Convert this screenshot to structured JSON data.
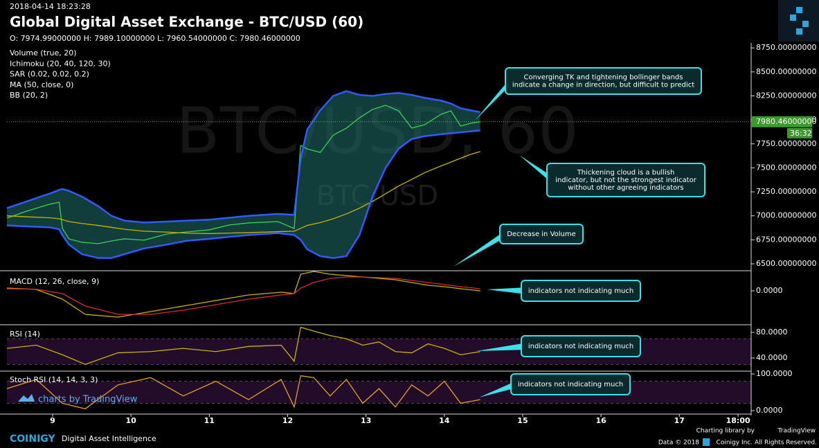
{
  "header": {
    "datetime": "2018-04-14 18:23:28",
    "title": "Global Digital Asset Exchange - BTC/USD (60)",
    "ohlc": "O: 7974.99000000 H: 7989.10000000 L: 7960.54000000 C: 7980.46000000"
  },
  "chart_data": [
    {
      "type": "line",
      "watermark": "BTC/USD, 60",
      "watermark_sub": "BTC/USD",
      "legend": [
        "Volume (true, 20)",
        "Ichimoku (20, 40, 120, 30)",
        "SAR (0.02, 0.02, 0.2)",
        "MA (50, close, 0)",
        "BB (20, 2)"
      ],
      "x": [
        -14,
        -8,
        -1,
        2,
        3,
        5,
        9,
        14,
        18,
        22,
        28,
        35,
        41,
        48,
        54,
        60,
        69,
        74,
        76,
        78,
        82,
        86,
        90,
        94,
        98,
        102,
        106,
        110,
        114,
        119,
        122,
        125,
        128,
        131
      ],
      "xlim": [
        -14,
        214
      ],
      "xticks": [
        {
          "value": 0,
          "label": "9"
        },
        {
          "value": 24,
          "label": "10"
        },
        {
          "value": 48,
          "label": "11"
        },
        {
          "value": 72,
          "label": "12"
        },
        {
          "value": 96,
          "label": "13"
        },
        {
          "value": 120,
          "label": "14"
        },
        {
          "value": 144,
          "label": "15"
        },
        {
          "value": 168,
          "label": "16"
        },
        {
          "value": 192,
          "label": "17"
        },
        {
          "value": 210,
          "label": "18:00"
        }
      ],
      "ylim": [
        6435,
        8780
      ],
      "yticks": [
        {
          "value": 6500,
          "label": "6500.00000000"
        },
        {
          "value": 6750,
          "label": "6750.00000000"
        },
        {
          "value": 7000,
          "label": "7000.00000000"
        },
        {
          "value": 7250,
          "label": "7250.00000000"
        },
        {
          "value": 7500,
          "label": "7500.00000000"
        },
        {
          "value": 7750,
          "label": "7750.00000000"
        },
        {
          "value": 8000,
          "label": "8000.00000000"
        },
        {
          "value": 8250,
          "label": "8250.00000000"
        },
        {
          "value": 8500,
          "label": "8500.00000000"
        },
        {
          "value": 8750,
          "label": "8750.00000000"
        }
      ],
      "series": [
        {
          "color": "#39d353",
          "values": [
            6976,
            7048,
            7120,
            7142,
            6868,
            6760,
            6724,
            6710,
            6738,
            6760,
            6746,
            6810,
            6832,
            6854,
            6904,
            6926,
            6940,
            6868,
            7733,
            7697,
            7661,
            7842,
            7914,
            8022,
            8108,
            8152,
            8094,
            7914,
            7950,
            8058,
            8094,
            7935,
            7964,
            7980
          ]
        },
        {
          "color": "#c8b400",
          "values": [
            7000,
            6990,
            6980,
            6970,
            6960,
            6940,
            6920,
            6900,
            6880,
            6860,
            6840,
            6830,
            6820,
            6815,
            6820,
            6825,
            6835,
            6840,
            6870,
            6900,
            6930,
            6970,
            7020,
            7080,
            7150,
            7230,
            7310,
            7380,
            7450,
            7520,
            7560,
            7600,
            7640,
            7670
          ]
        },
        {
          "color": "#2f5bff",
          "values": [
            7080,
            7150,
            7230,
            7270,
            7280,
            7260,
            7200,
            7100,
            7000,
            6950,
            6930,
            6940,
            6950,
            6960,
            6980,
            7000,
            7020,
            7010,
            7600,
            7900,
            8100,
            8250,
            8300,
            8260,
            8250,
            8270,
            8280,
            8260,
            8230,
            8200,
            8170,
            8120,
            8100,
            8080
          ]
        },
        {
          "color": "#2f5bff",
          "values": [
            6900,
            6890,
            6880,
            6860,
            6800,
            6700,
            6600,
            6560,
            6560,
            6600,
            6660,
            6700,
            6740,
            6760,
            6780,
            6800,
            6820,
            6800,
            6750,
            6650,
            6580,
            6560,
            6580,
            6800,
            7200,
            7500,
            7700,
            7800,
            7830,
            7850,
            7860,
            7870,
            7880,
            7890
          ]
        }
      ],
      "last_price": {
        "value": 7980.46,
        "label": "7980.46000000"
      },
      "countdown": "36:32"
    },
    {
      "type": "line",
      "title": "MACD (12, 26, close, 9)",
      "x": [
        -14,
        -5,
        3,
        10,
        20,
        30,
        40,
        50,
        60,
        70,
        74,
        76,
        80,
        85,
        90,
        95,
        100,
        105,
        110,
        115,
        120,
        125,
        131
      ],
      "xlim": [
        -14,
        214
      ],
      "ylim": [
        -240,
        140
      ],
      "yticks": [
        {
          "value": 0,
          "label": "0.0000"
        }
      ],
      "series": [
        {
          "color": "#c8b400",
          "values": [
            20,
            10,
            -60,
            -170,
            -190,
            -150,
            -110,
            -70,
            -30,
            -10,
            -20,
            120,
            140,
            120,
            110,
            100,
            90,
            80,
            60,
            40,
            30,
            15,
            0
          ]
        },
        {
          "color": "#d32f2f",
          "values": [
            15,
            12,
            -20,
            -110,
            -170,
            -170,
            -140,
            -100,
            -60,
            -30,
            -20,
            20,
            60,
            90,
            100,
            100,
            95,
            90,
            75,
            60,
            45,
            30,
            15
          ]
        }
      ]
    },
    {
      "type": "line",
      "title": "RSI (14)",
      "x": [
        -14,
        -5,
        3,
        10,
        20,
        30,
        40,
        50,
        60,
        70,
        74,
        76,
        80,
        85,
        90,
        95,
        100,
        105,
        110,
        115,
        120,
        125,
        131
      ],
      "xlim": [
        -14,
        214
      ],
      "ylim": [
        20.5,
        90.8
      ],
      "yticks": [
        {
          "value": 40,
          "label": "40.0000"
        },
        {
          "value": 80,
          "label": "80.0000"
        }
      ],
      "bands": [
        30,
        70
      ],
      "series": [
        {
          "color": "#c8b400",
          "values": [
            55,
            60,
            45,
            30,
            48,
            50,
            55,
            50,
            58,
            60,
            35,
            88,
            82,
            75,
            70,
            60,
            65,
            50,
            48,
            62,
            55,
            45,
            50
          ]
        }
      ]
    },
    {
      "type": "line",
      "title": "Stoch RSI (14, 14, 3, 3)",
      "x": [
        -14,
        -5,
        3,
        10,
        20,
        30,
        40,
        50,
        60,
        70,
        74,
        76,
        80,
        85,
        90,
        95,
        100,
        105,
        110,
        115,
        120,
        125,
        131
      ],
      "xlim": [
        -14,
        214
      ],
      "ylim": [
        -9.4,
        105.7
      ],
      "yticks": [
        {
          "value": 0,
          "label": "0.0000"
        },
        {
          "value": 100,
          "label": "100.0000"
        }
      ],
      "bands": [
        20,
        80
      ],
      "series": [
        {
          "color": "#e8a020",
          "values": [
            60,
            85,
            20,
            5,
            70,
            90,
            40,
            80,
            30,
            85,
            10,
            95,
            90,
            40,
            85,
            20,
            60,
            10,
            70,
            40,
            80,
            20,
            30
          ]
        }
      ]
    }
  ],
  "annotations": [
    {
      "lines": [
        "Converging TK and tightening bollinger bands",
        "indicate a change in direction, but difficult to predict"
      ]
    },
    {
      "lines": [
        "Thickening cloud is a bullish",
        "indicator, but not the strongest indicator",
        "without other agreeing indicators"
      ]
    },
    {
      "lines": [
        "Decrease in Volume"
      ]
    },
    {
      "lines": [
        "indicators not indicating much"
      ]
    },
    {
      "lines": [
        "indicators not indicating much"
      ]
    },
    {
      "lines": [
        "indicators not indicating much"
      ]
    }
  ],
  "footer": {
    "tv_badge": "charts by TradingView",
    "brand": "COINIGY",
    "tagline": "Digital Asset Intelligence",
    "charting": "Charting library by",
    "tv": "TradingView",
    "data": "Data © 2018",
    "rights": "Coinigy Inc. All Rights Reserved."
  }
}
